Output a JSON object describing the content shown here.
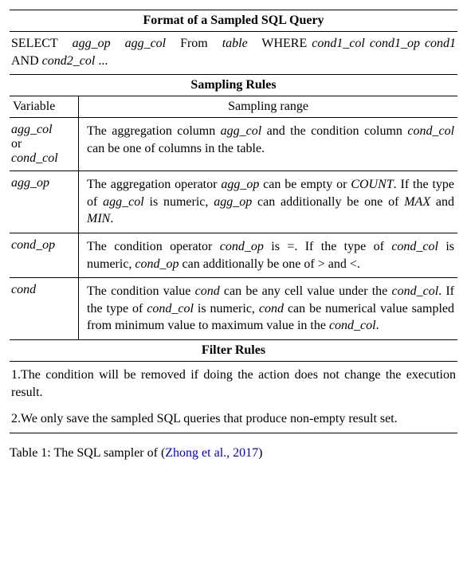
{
  "headers": {
    "format": "Format of a Sampled SQL Query",
    "sampling": "Sampling Rules",
    "filter": "Filter Rules",
    "variable": "Variable",
    "range": "Sampling range"
  },
  "format_line": {
    "select": "SELECT",
    "agg_op": "agg_op",
    "agg_col": "agg_col",
    "from": "From",
    "table": "table",
    "where": "WHERE",
    "cond1_col": "cond1_col",
    "cond1_op": "cond1_op",
    "cond1": "cond1",
    "and": "AND",
    "cond2_col": "cond2_col",
    "ellipsis": "..."
  },
  "rows": {
    "r1": {
      "v1": "agg_col",
      "or": "or",
      "v2": "cond_col",
      "t1": "The aggregation column ",
      "t2": "agg_col",
      "t3": " and the condition column ",
      "t4": "cond_col",
      "t5": " can be one of columns in the table."
    },
    "r2": {
      "v": "agg_op",
      "t1": "The aggregation operator ",
      "t2": "agg_op",
      "t3": " can be empty or ",
      "t4": "COUNT",
      "t5": ". If the type of ",
      "t6": "agg_col",
      "t7": " is numeric, ",
      "t8": "agg_op",
      "t9": " can additionally be one of ",
      "t10": "MAX",
      "t11": " and ",
      "t12": "MIN",
      "t13": "."
    },
    "r3": {
      "v": "cond_op",
      "t1": "The condition operator ",
      "t2": "cond_op",
      "t3": " is ",
      "eq": "=",
      "t4": ". If the type of ",
      "t5": "cond_col",
      "t6": " is numeric, ",
      "t7": "cond_op",
      "t8": " can additionally be one of ",
      "gt": ">",
      "t9": " and ",
      "lt": "<",
      "t10": "."
    },
    "r4": {
      "v": "cond",
      "t1": "The condition value ",
      "t2": "cond",
      "t3": " can be any cell value under the ",
      "t4": "cond_col",
      "t5": ". If the type of ",
      "t6": "cond_col",
      "t7": " is numeric, ",
      "t8": "cond",
      "t9": " can be numerical value sampled from minimum value to maximum value in the ",
      "t10": "cond_col",
      "t11": "."
    }
  },
  "filters": {
    "f1": "1.The condition will be removed if doing the action does not change the execution result.",
    "f2": "2.We only save the sampled SQL queries that produce non-empty result set."
  },
  "caption": {
    "prefix": "Table 1: The SQL sampler of (",
    "cite": "Zhong et al., 2017",
    "suffix": ")"
  }
}
